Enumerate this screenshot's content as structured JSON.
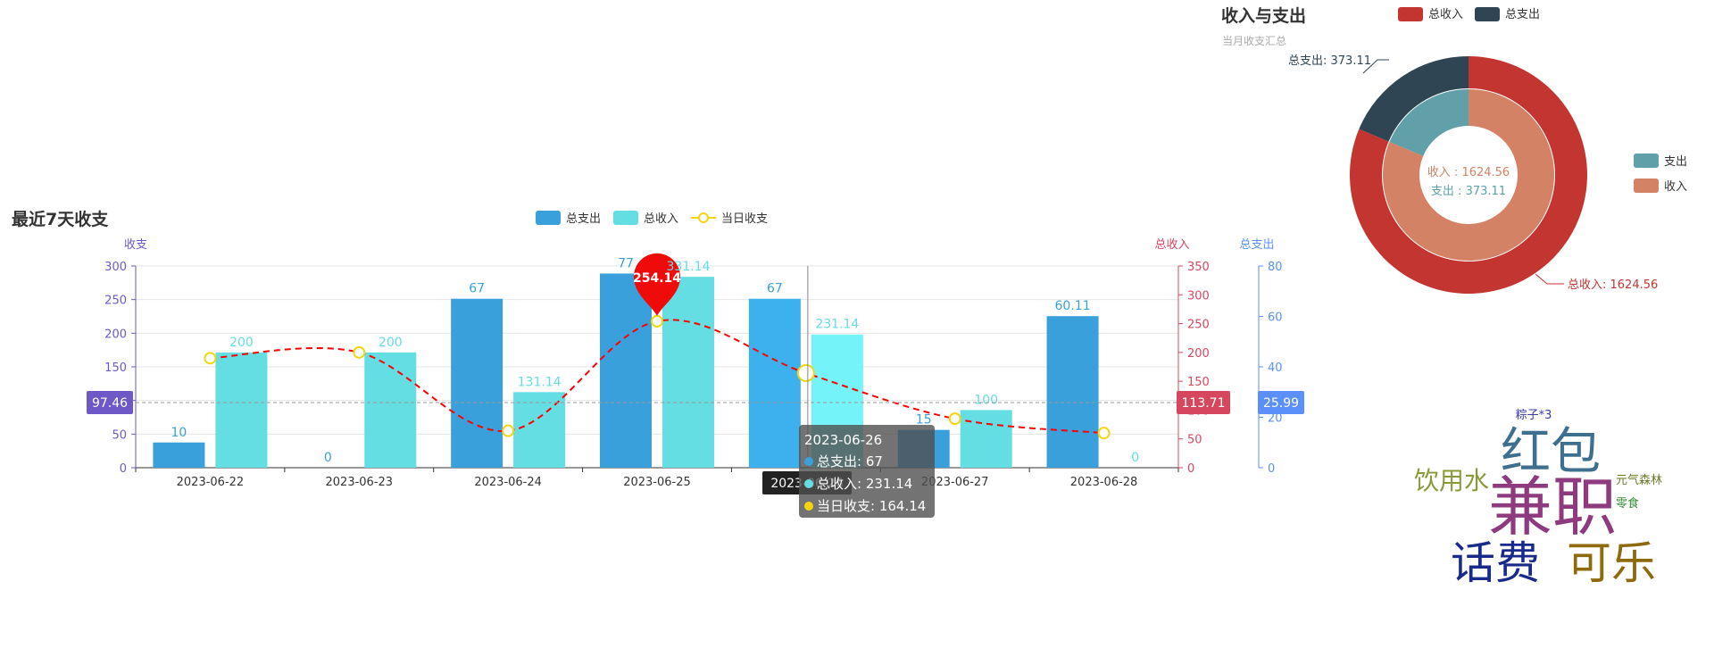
{
  "chart_data": [
    {
      "type": "bar",
      "title": "最近7天收支",
      "categories": [
        "2023-06-22",
        "2023-06-23",
        "2023-06-24",
        "2023-06-25",
        "2023-06-26",
        "2023-06-27",
        "2023-06-28"
      ],
      "series": [
        {
          "name": "总支出",
          "values": [
            10,
            0,
            67,
            77,
            67,
            15,
            60.11
          ],
          "color": "#3aa0dc"
        },
        {
          "name": "总收入",
          "values": [
            200,
            200,
            131.14,
            331.14,
            231.14,
            100,
            0
          ],
          "color": "#64dde3"
        },
        {
          "name": "当日收支",
          "type": "line",
          "values": [
            190,
            200,
            64,
            254.14,
            164.14,
            85,
            60.11
          ],
          "color": "#ff0000"
        }
      ],
      "y_axes": [
        {
          "name": "收支",
          "ylim": [
            0,
            300
          ],
          "ticks": [
            "0",
            "50",
            "100",
            "150",
            "200",
            "250",
            "300"
          ],
          "color": "#6e58c8"
        },
        {
          "name": "总收入",
          "ylim": [
            0,
            350
          ],
          "ticks": [
            "0",
            "50",
            "100",
            "150",
            "200",
            "250",
            "300",
            "350"
          ],
          "color": "#d6475f"
        },
        {
          "name": "总支出",
          "ylim": [
            0,
            80
          ],
          "ticks": [
            "0",
            "20",
            "40",
            "60",
            "80"
          ],
          "color": "#5b8ff9"
        }
      ],
      "axis_pointer_labels": {
        "left": "97.46",
        "right": "113.71",
        "right2": "25.99",
        "bottom": "2023-06-26"
      },
      "max_marker": "254.14",
      "tooltip": {
        "title": "2023-06-26",
        "rows": [
          {
            "label": "总支出: 67",
            "color": "#3aa0dc"
          },
          {
            "label": "总收入: 231.14",
            "color": "#64dde3"
          },
          {
            "label": "当日收支: 164.14",
            "color": "#f5d60e"
          }
        ]
      },
      "legend_placement": "top-center",
      "grid": true
    },
    {
      "type": "pie",
      "title": "收入与支出",
      "subtitle": "当月收支汇总",
      "outer": [
        {
          "name": "总收入",
          "value": 1624.56,
          "color": "#c23531",
          "label": "总收入: 1624.56"
        },
        {
          "name": "总支出",
          "value": 373.11,
          "color": "#2f4554",
          "label": "总支出: 373.11"
        }
      ],
      "inner": [
        {
          "name": "收入",
          "value": 1624.56,
          "color": "#d48265"
        },
        {
          "name": "支出",
          "value": 373.11,
          "color": "#61a0a8"
        }
      ],
      "center_labels": {
        "income": "收入 : 1624.56",
        "expense": "支出 : 373.11"
      },
      "legend_top": [
        {
          "name": "总收入",
          "color": "#c23531"
        },
        {
          "name": "总支出",
          "color": "#2f4554"
        }
      ],
      "legend_right": [
        {
          "name": "支出",
          "color": "#61a0a8"
        },
        {
          "name": "收入",
          "color": "#d48265"
        }
      ]
    }
  ],
  "word_cloud": [
    {
      "text": "粽子*3",
      "color": "#3a3aa8"
    },
    {
      "text": "红包",
      "color": "#3e6f8e"
    },
    {
      "text": "饮用水",
      "color": "#8a9a3a"
    },
    {
      "text": "兼职",
      "color": "#8e3a7e"
    },
    {
      "text": "元气森林",
      "color": "#6a7a2a"
    },
    {
      "text": "零食",
      "color": "#3a8a3a"
    },
    {
      "text": "话费",
      "color": "#1a2a8a"
    },
    {
      "text": "可乐",
      "color": "#8e6a0e"
    }
  ]
}
